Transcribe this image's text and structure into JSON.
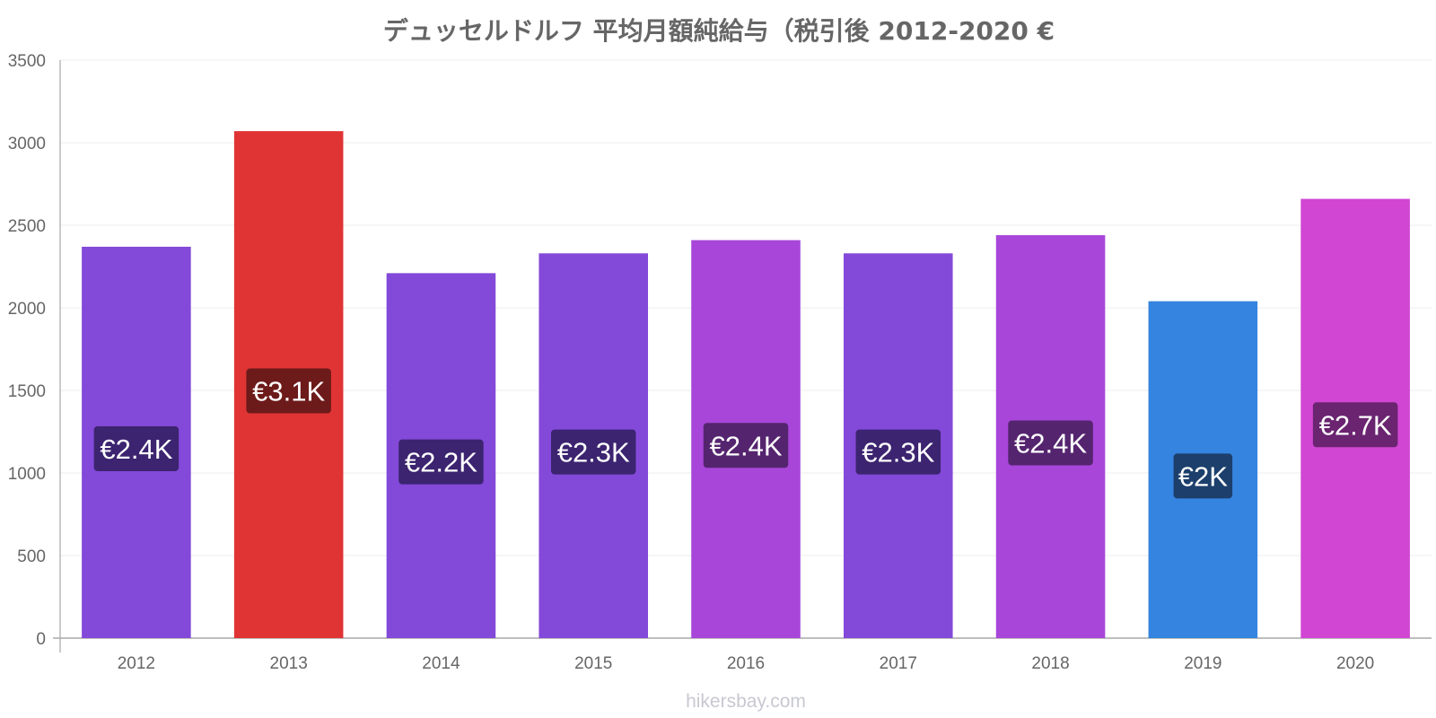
{
  "chart_data": {
    "type": "bar",
    "title": "デュッセルドルフ 平均月額純給与（税引後 2012-2020 €",
    "xlabel": "",
    "ylabel": "",
    "categories": [
      "2012",
      "2013",
      "2014",
      "2015",
      "2016",
      "2017",
      "2018",
      "2019",
      "2020"
    ],
    "values": [
      2370,
      3070,
      2210,
      2330,
      2410,
      2330,
      2440,
      2040,
      2660
    ],
    "data_labels": [
      "€2.4K",
      "€3.1K",
      "€2.2K",
      "€2.3K",
      "€2.4K",
      "€2.3K",
      "€2.4K",
      "€2K",
      "€2.7K"
    ],
    "bar_colors": [
      "#8349d9",
      "#e03434",
      "#8349d9",
      "#8349d9",
      "#a846d9",
      "#8349d9",
      "#a846d9",
      "#3584df",
      "#d146d3"
    ],
    "label_box_colors": [
      "#3c2470",
      "#6d1a1a",
      "#3c2470",
      "#3c2470",
      "#55246f",
      "#3c2470",
      "#55246f",
      "#1c3f6c",
      "#6a2470"
    ],
    "ylim": [
      0,
      3500
    ],
    "yticks": [
      "0",
      "500",
      "1000",
      "1500",
      "2000",
      "2500",
      "3000",
      "3500"
    ],
    "grid": true,
    "legend": "none"
  },
  "watermark": "hikersbay.com"
}
